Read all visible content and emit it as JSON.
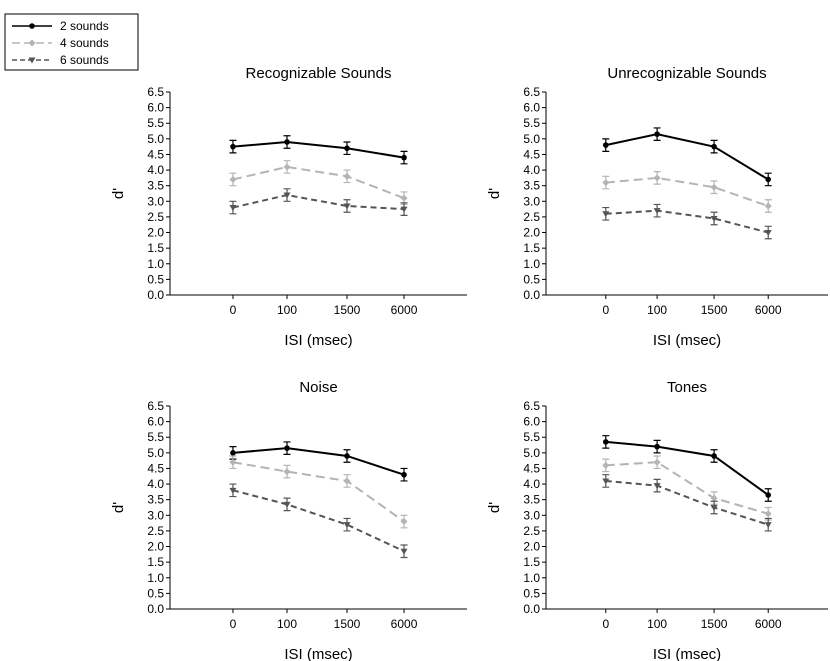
{
  "legend": [
    {
      "name": "2 sounds",
      "color": "#000000",
      "dash": "solid",
      "marker": "circle"
    },
    {
      "name": "4 sounds",
      "color": "#b4b4b4",
      "dash": "long-dash",
      "marker": "diamond"
    },
    {
      "name": "6 sounds",
      "color": "#555555",
      "dash": "short-dash",
      "marker": "triangle-down"
    }
  ],
  "chart_data": [
    {
      "type": "line",
      "title": "Recognizable Sounds",
      "xlabel": "ISI (msec)",
      "ylabel": "d'",
      "categories": [
        "0",
        "100",
        "1500",
        "6000"
      ],
      "ylim": [
        0,
        6.5
      ],
      "yticks": [
        "0.0",
        "0.5",
        "1.0",
        "1.5",
        "2.0",
        "2.5",
        "3.0",
        "3.5",
        "4.0",
        "4.5",
        "5.0",
        "5.5",
        "6.0",
        "6.5"
      ],
      "series": [
        {
          "name": "2 sounds",
          "values": [
            4.75,
            4.9,
            4.7,
            4.4
          ],
          "errors": [
            0.2,
            0.2,
            0.2,
            0.2
          ]
        },
        {
          "name": "4 sounds",
          "values": [
            3.7,
            4.1,
            3.8,
            3.1
          ],
          "errors": [
            0.2,
            0.2,
            0.2,
            0.2
          ]
        },
        {
          "name": "6 sounds",
          "values": [
            2.8,
            3.2,
            2.85,
            2.75
          ],
          "errors": [
            0.2,
            0.2,
            0.2,
            0.2
          ]
        }
      ]
    },
    {
      "type": "line",
      "title": "Unrecognizable Sounds",
      "xlabel": "ISI (msec)",
      "ylabel": "d'",
      "categories": [
        "0",
        "100",
        "1500",
        "6000"
      ],
      "ylim": [
        0,
        6.5
      ],
      "yticks": [
        "0.0",
        "0.5",
        "1.0",
        "1.5",
        "2.0",
        "2.5",
        "3.0",
        "3.5",
        "4.0",
        "4.5",
        "5.0",
        "5.5",
        "6.0",
        "6.5"
      ],
      "series": [
        {
          "name": "2 sounds",
          "values": [
            4.8,
            5.15,
            4.75,
            3.7
          ],
          "errors": [
            0.2,
            0.2,
            0.2,
            0.2
          ]
        },
        {
          "name": "4 sounds",
          "values": [
            3.6,
            3.75,
            3.45,
            2.85
          ],
          "errors": [
            0.2,
            0.2,
            0.2,
            0.2
          ]
        },
        {
          "name": "6 sounds",
          "values": [
            2.6,
            2.7,
            2.45,
            2.0
          ],
          "errors": [
            0.2,
            0.2,
            0.2,
            0.2
          ]
        }
      ]
    },
    {
      "type": "line",
      "title": "Noise",
      "xlabel": "ISI (msec)",
      "ylabel": "d'",
      "categories": [
        "0",
        "100",
        "1500",
        "6000"
      ],
      "ylim": [
        0,
        6.5
      ],
      "yticks": [
        "0.0",
        "0.5",
        "1.0",
        "1.5",
        "2.0",
        "2.5",
        "3.0",
        "3.5",
        "4.0",
        "4.5",
        "5.0",
        "5.5",
        "6.0",
        "6.5"
      ],
      "series": [
        {
          "name": "2 sounds",
          "values": [
            5.0,
            5.15,
            4.9,
            4.3
          ],
          "errors": [
            0.2,
            0.2,
            0.2,
            0.2
          ]
        },
        {
          "name": "4 sounds",
          "values": [
            4.7,
            4.4,
            4.1,
            2.8
          ],
          "errors": [
            0.2,
            0.2,
            0.2,
            0.2
          ]
        },
        {
          "name": "6 sounds",
          "values": [
            3.8,
            3.35,
            2.7,
            1.85
          ],
          "errors": [
            0.2,
            0.2,
            0.2,
            0.2
          ]
        }
      ]
    },
    {
      "type": "line",
      "title": "Tones",
      "xlabel": "ISI (msec)",
      "ylabel": "d'",
      "categories": [
        "0",
        "100",
        "1500",
        "6000"
      ],
      "ylim": [
        0,
        6.5
      ],
      "yticks": [
        "0.0",
        "0.5",
        "1.0",
        "1.5",
        "2.0",
        "2.5",
        "3.0",
        "3.5",
        "4.0",
        "4.5",
        "5.0",
        "5.5",
        "6.0",
        "6.5"
      ],
      "series": [
        {
          "name": "2 sounds",
          "values": [
            5.35,
            5.2,
            4.9,
            3.65
          ],
          "errors": [
            0.2,
            0.2,
            0.2,
            0.2
          ]
        },
        {
          "name": "4 sounds",
          "values": [
            4.6,
            4.7,
            3.55,
            3.05
          ],
          "errors": [
            0.2,
            0.2,
            0.2,
            0.2
          ]
        },
        {
          "name": "6 sounds",
          "values": [
            4.1,
            3.95,
            3.25,
            2.7
          ],
          "errors": [
            0.2,
            0.2,
            0.2,
            0.2
          ]
        }
      ]
    }
  ]
}
